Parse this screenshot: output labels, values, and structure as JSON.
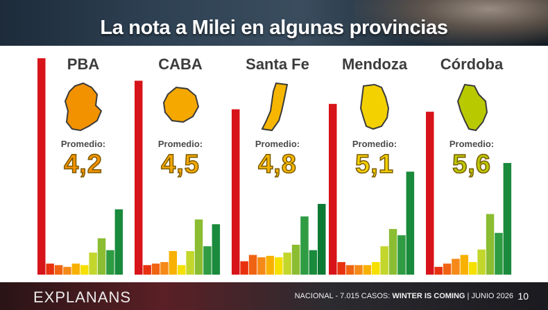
{
  "title": "La nota a Milei en algunas provincias",
  "footer": {
    "brand": "EXPLANANS",
    "left": "NACIONAL - 7.015 CASOS: ",
    "strong": "WINTER IS COMING",
    "sep": " | ",
    "date": "JUNIO 2026",
    "page": "10"
  },
  "chart_data": [
    {
      "type": "bar",
      "province": "PBA",
      "label": "Promedio:",
      "average": "4,2",
      "color": "#f39200",
      "categories": [
        "0",
        "1",
        "2",
        "3",
        "4",
        "5",
        "6",
        "7",
        "8",
        "9",
        "10"
      ],
      "values": [
        100,
        5.1,
        4.4,
        3.6,
        5.1,
        4.4,
        10.2,
        16.8,
        11.3,
        30.2,
        0
      ]
    },
    {
      "type": "bar",
      "province": "CABA",
      "label": "Promedio:",
      "average": "4,5",
      "color": "#f5a800",
      "categories": [
        "0",
        "1",
        "2",
        "3",
        "4",
        "5",
        "6",
        "7",
        "8",
        "9",
        "10"
      ],
      "values": [
        89.6,
        4.4,
        5.1,
        5.8,
        10.9,
        4.4,
        10.9,
        25.5,
        13.1,
        23.3,
        0
      ]
    },
    {
      "type": "bar",
      "province": "Santa Fe",
      "label": "Promedio:",
      "average": "4,8",
      "color": "#f6b600",
      "categories": [
        "0",
        "1",
        "2",
        "3",
        "4",
        "5",
        "6",
        "7",
        "8",
        "9",
        "10"
      ],
      "values": [
        76.4,
        6.2,
        9.1,
        8.0,
        8.7,
        8.0,
        10.2,
        13.8,
        26.9,
        11.3,
        32.7
      ]
    },
    {
      "type": "bar",
      "province": "Mendoza",
      "label": "Promedio:",
      "average": "5,1",
      "color": "#f3d000",
      "categories": [
        "0",
        "1",
        "2",
        "3",
        "4",
        "5",
        "6",
        "7",
        "8",
        "9",
        "10"
      ],
      "values": [
        78.9,
        5.8,
        4.4,
        4.4,
        4.4,
        5.8,
        13.1,
        21.1,
        18.2,
        47.6,
        0
      ]
    },
    {
      "type": "bar",
      "province": "Córdoba",
      "label": "Promedio:",
      "average": "5,6",
      "color": "#b9c900",
      "categories": [
        "0",
        "1",
        "2",
        "3",
        "4",
        "5",
        "6",
        "7",
        "8",
        "9",
        "10"
      ],
      "values": [
        75.3,
        3.6,
        5.1,
        7.3,
        9.1,
        5.8,
        11.6,
        28.0,
        19.3,
        51.6,
        0
      ]
    }
  ]
}
